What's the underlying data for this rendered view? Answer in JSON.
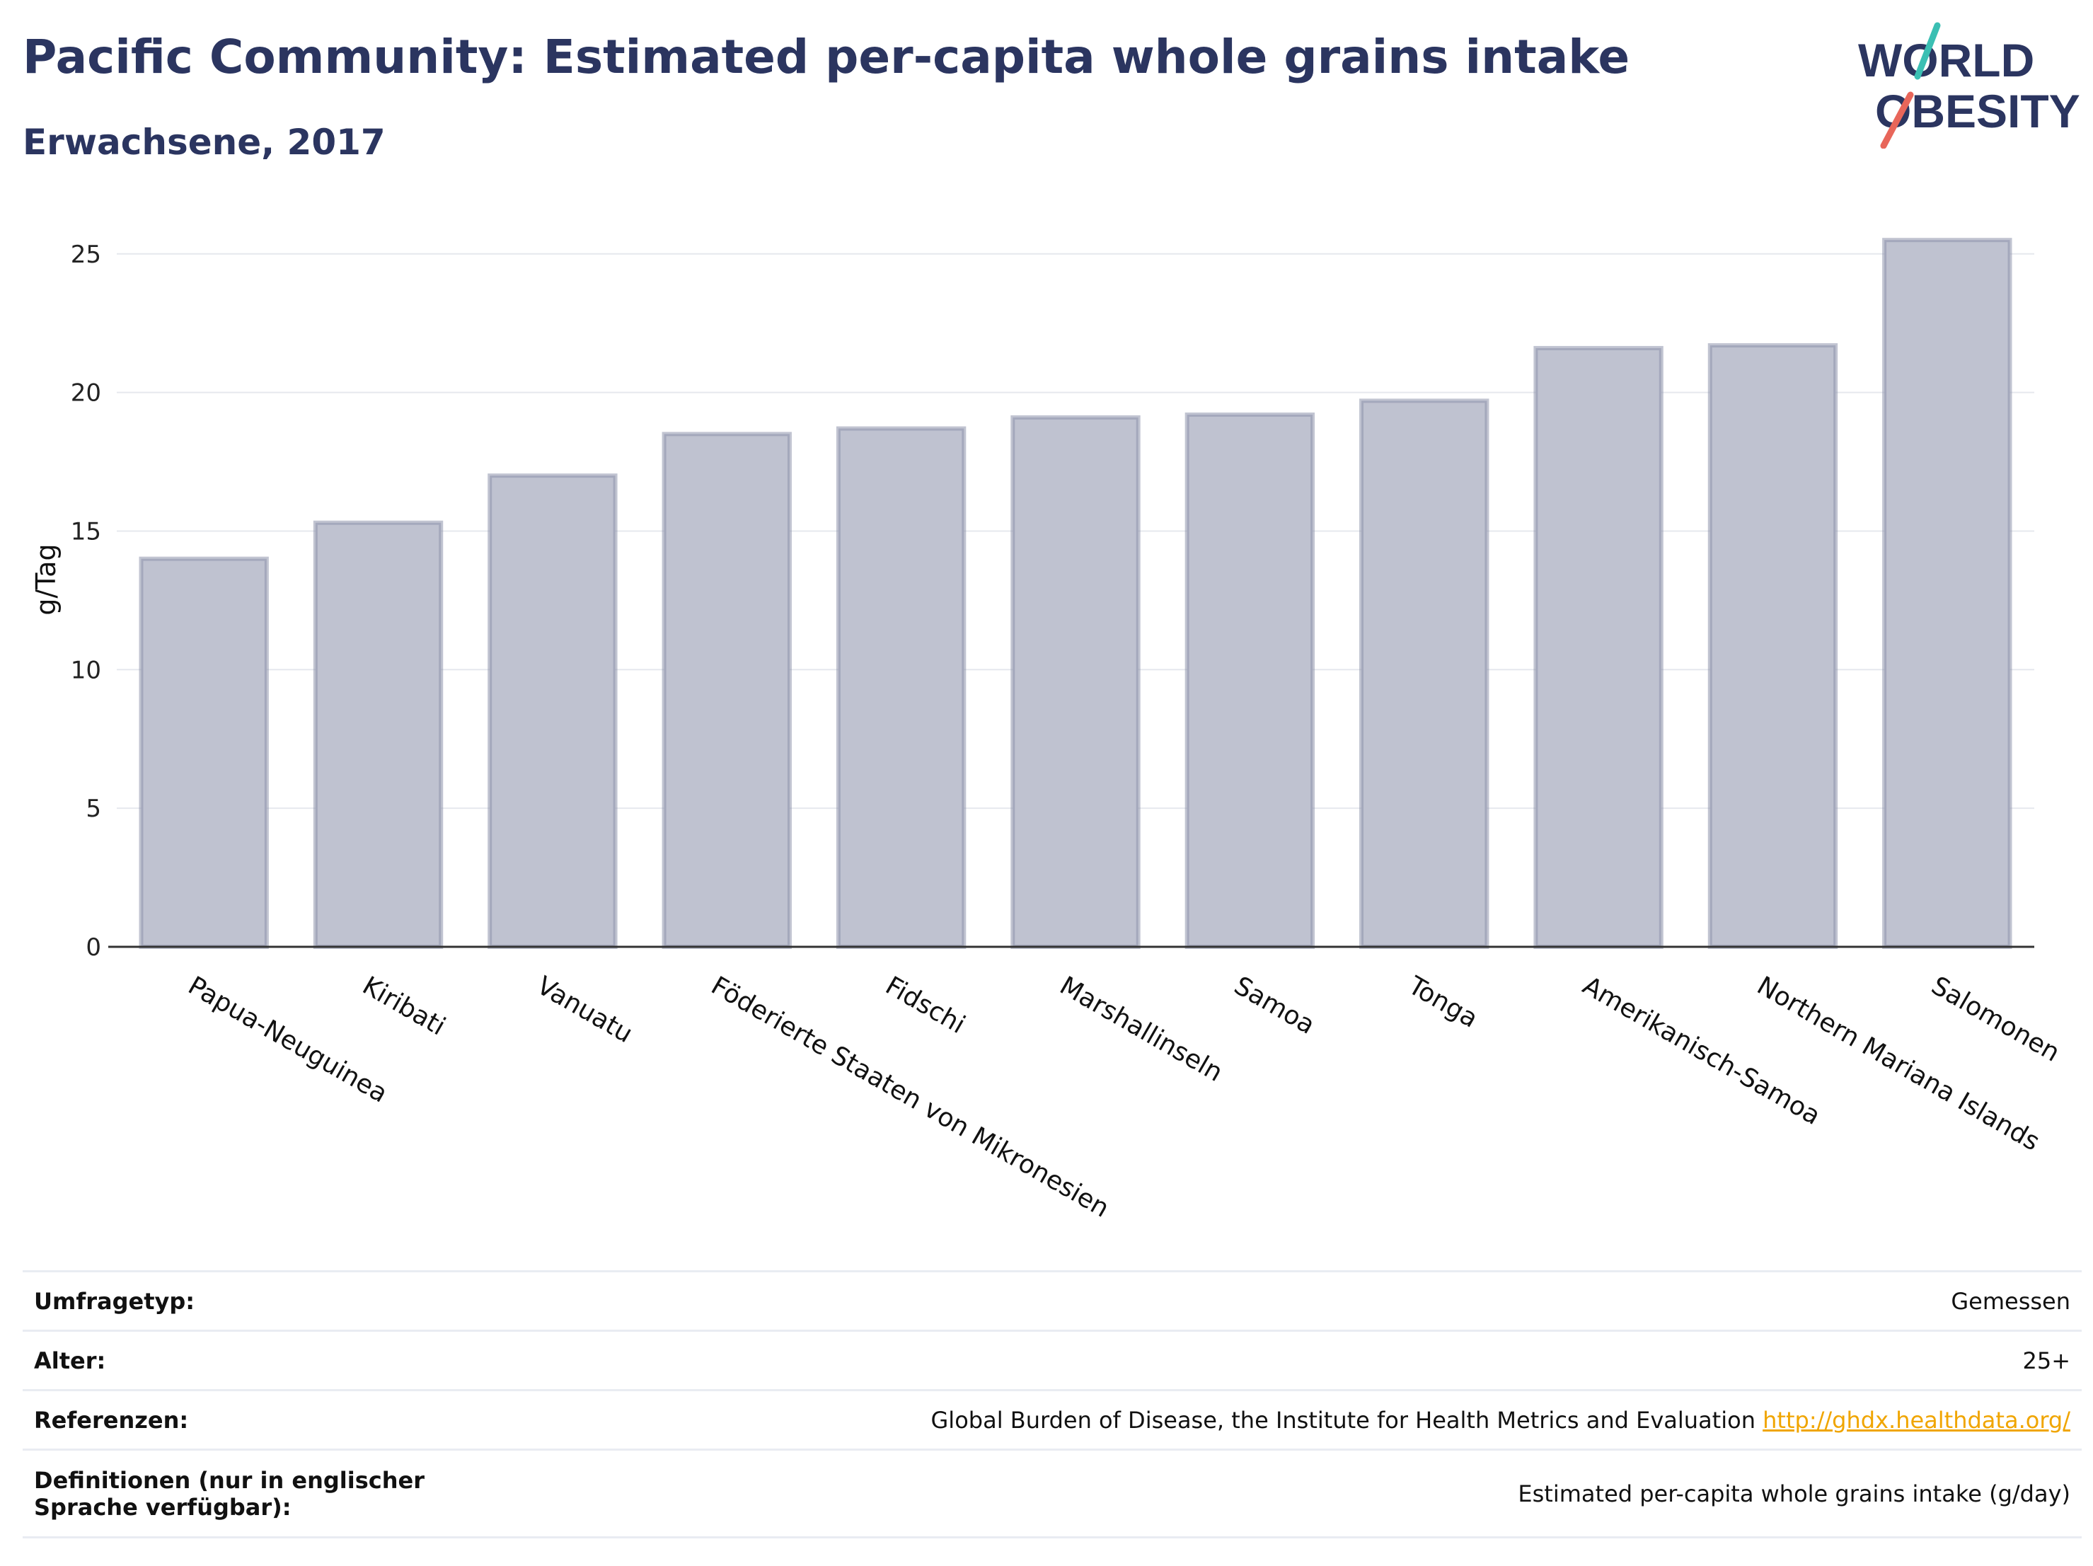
{
  "header": {
    "title": "Pacific Community: Estimated per-capita whole grains intake",
    "subtitle": "Erwachsene, 2017"
  },
  "logo": {
    "line1": "WORLD",
    "line2": "OBESITY",
    "colors": {
      "text": "#2b3560",
      "slash_top": "#3bbfb3",
      "slash_bottom": "#e8665a"
    }
  },
  "chart_data": {
    "type": "bar",
    "categories": [
      "Papua-Neuguinea",
      "Kiribati",
      "Vanuatu",
      "Föderierte Staaten von Mikronesien",
      "Fidschi",
      "Marshallinseln",
      "Samoa",
      "Tonga",
      "Amerikanisch-Samoa",
      "Northern Mariana Islands",
      "Salomonen"
    ],
    "values": [
      14.0,
      15.3,
      17.0,
      18.5,
      18.7,
      19.1,
      19.2,
      19.7,
      21.6,
      21.7,
      25.5
    ],
    "ylabel": "g/Tag",
    "yticks": [
      0,
      5,
      10,
      15,
      20,
      25
    ],
    "ylim": [
      0,
      26.5
    ],
    "grid": true,
    "colors": {
      "bar_fill": "#bfc2d0",
      "bar_stroke": "#8e93ab"
    }
  },
  "meta": {
    "rows": [
      {
        "label": "Umfragetyp:",
        "value": "Gemessen"
      },
      {
        "label": "Alter:",
        "value": "25+"
      },
      {
        "label": "Referenzen:",
        "value": "Global Burden of Disease, the Institute for Health Metrics and Evaluation",
        "link": "http://ghdx.healthdata.org/"
      },
      {
        "label": "Definitionen (nur in englischer Sprache verfügbar):",
        "value": "Estimated per-capita whole grains intake (g/day)"
      }
    ]
  }
}
